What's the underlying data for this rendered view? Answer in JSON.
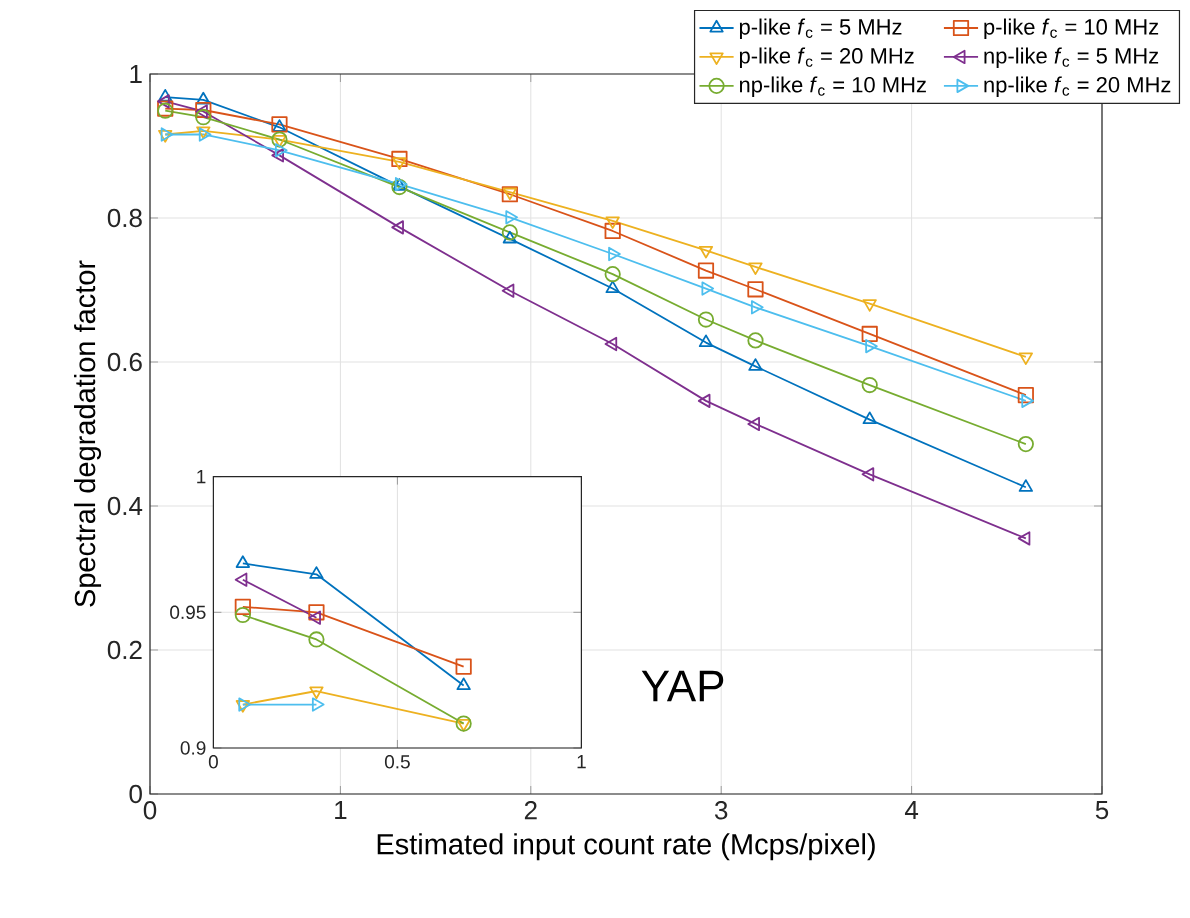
{
  "chart_data": [
    {
      "type": "line",
      "xlabel": "Estimated input count rate (Mcps/pixel)",
      "ylabel": "Spectral degradation factor",
      "xlim": [
        0,
        5
      ],
      "ylim": [
        0,
        1
      ],
      "xticks": [
        0,
        1,
        2,
        3,
        4,
        5
      ],
      "yticks": [
        0,
        0.2,
        0.4,
        0.6,
        0.8,
        1
      ],
      "grid": true,
      "legend": "top right",
      "annotations": [
        "YAP"
      ],
      "x": [
        0.08,
        0.28,
        0.68,
        1.31,
        1.89,
        2.43,
        2.92,
        3.18,
        3.78,
        4.6
      ],
      "series": [
        {
          "name": "p-like *f*$_{c}$ = 5   MHz",
          "color": "#0072bd",
          "marker": "triangle",
          "values": [
            0.968,
            0.964,
            0.926,
            0.844,
            0.771,
            0.702,
            0.627,
            0.594,
            0.52,
            0.426
          ]
        },
        {
          "name": "p-like *f*$_{c}$ = 10 MHz",
          "color": "#d95319",
          "marker": "square",
          "values": [
            0.952,
            0.95,
            0.93,
            0.882,
            0.833,
            0.782,
            0.727,
            0.701,
            0.639,
            0.554
          ]
        },
        {
          "name": "p-like *f*$_{c}$ = 20 MHz",
          "color": "#edb120",
          "marker": "triangle-down",
          "values": [
            0.916,
            0.921,
            0.909,
            0.878,
            0.836,
            0.796,
            0.755,
            0.732,
            0.681,
            0.607
          ]
        },
        {
          "name": "np-like *f*$_{c}$ = 5   MHz",
          "color": "#7e2f8e",
          "marker": "triangle-left",
          "values": [
            0.962,
            0.948,
            0.887,
            0.787,
            0.699,
            0.625,
            0.546,
            0.514,
            0.444,
            0.355
          ]
        },
        {
          "name": "np-like *f*$_{c}$ = 10 MHz",
          "color": "#77ac30",
          "marker": "circle",
          "values": [
            0.949,
            0.94,
            0.909,
            0.843,
            0.78,
            0.722,
            0.659,
            0.63,
            0.568,
            0.486
          ]
        },
        {
          "name": "np-like *f*$_{c}$ = 20 MHz",
          "color": "#4dbeee",
          "marker": "triangle-right",
          "values": [
            0.916,
            0.916,
            0.894,
            0.847,
            0.801,
            0.75,
            0.702,
            0.676,
            0.622,
            0.546
          ]
        }
      ]
    },
    {
      "type": "line",
      "xlim": [
        0,
        1
      ],
      "ylim": [
        0.9,
        1
      ],
      "xticks": [
        0,
        0.5,
        1
      ],
      "yticks": [
        0.9,
        0.95,
        1
      ],
      "grid": true,
      "series": [
        {
          "color": "#0072bd",
          "marker": "triangle",
          "x": [
            0.08,
            0.28,
            0.68
          ],
          "values": [
            0.968,
            0.964,
            0.923
          ]
        },
        {
          "color": "#d95319",
          "marker": "square",
          "x": [
            0.08,
            0.28,
            0.68
          ],
          "values": [
            0.952,
            0.95,
            0.93
          ]
        },
        {
          "color": "#edb120",
          "marker": "triangle-down",
          "x": [
            0.08,
            0.28,
            0.68
          ],
          "values": [
            0.916,
            0.921,
            0.909
          ]
        },
        {
          "color": "#7e2f8e",
          "marker": "triangle-left",
          "x": [
            0.08,
            0.28
          ],
          "values": [
            0.962,
            0.948
          ]
        },
        {
          "color": "#77ac30",
          "marker": "circle",
          "x": [
            0.08,
            0.28,
            0.68
          ],
          "values": [
            0.949,
            0.94,
            0.909
          ]
        },
        {
          "color": "#4dbeee",
          "marker": "triangle-right",
          "x": [
            0.08,
            0.28
          ],
          "values": [
            0.916,
            0.916
          ]
        }
      ]
    }
  ]
}
